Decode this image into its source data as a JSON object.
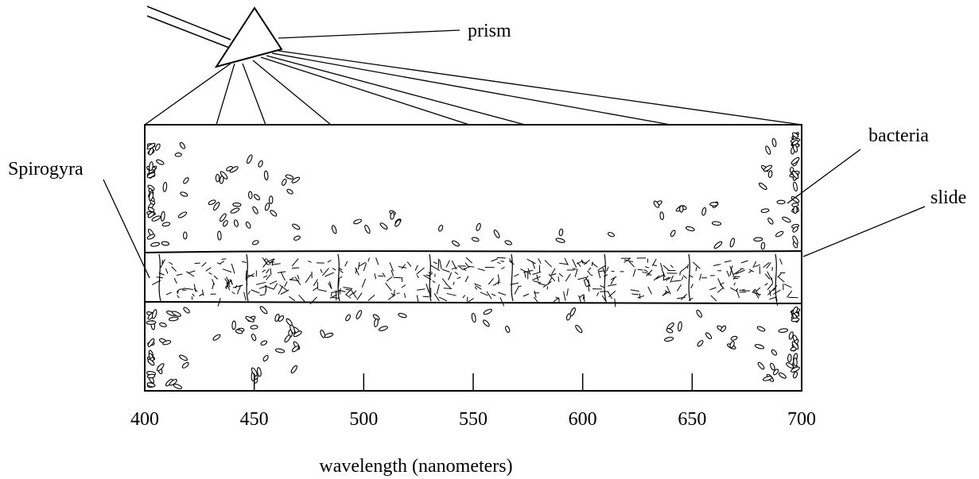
{
  "labels": {
    "prism": "prism",
    "bacteria": "bacteria",
    "slide": "slide",
    "spirogyra": "Spirogyra",
    "axis_title": "wavelength (nanometers)"
  },
  "axis": {
    "min": 400,
    "max": 700,
    "ticks": [
      "400",
      "450",
      "500",
      "550",
      "600",
      "650",
      "700"
    ]
  },
  "bacteria_density": {
    "above": [
      {
        "wavelength": 400,
        "count": 38
      },
      {
        "wavelength": 450,
        "count": 30
      },
      {
        "wavelength": 500,
        "count": 8
      },
      {
        "wavelength": 550,
        "count": 6
      },
      {
        "wavelength": 600,
        "count": 3
      },
      {
        "wavelength": 650,
        "count": 14
      },
      {
        "wavelength": 700,
        "count": 40
      }
    ],
    "below": [
      {
        "wavelength": 400,
        "count": 40
      },
      {
        "wavelength": 450,
        "count": 28
      },
      {
        "wavelength": 500,
        "count": 8
      },
      {
        "wavelength": 550,
        "count": 4
      },
      {
        "wavelength": 600,
        "count": 3
      },
      {
        "wavelength": 650,
        "count": 12
      },
      {
        "wavelength": 700,
        "count": 30
      }
    ]
  },
  "colors": {
    "ink": "#000000",
    "background": "#ffffff"
  }
}
